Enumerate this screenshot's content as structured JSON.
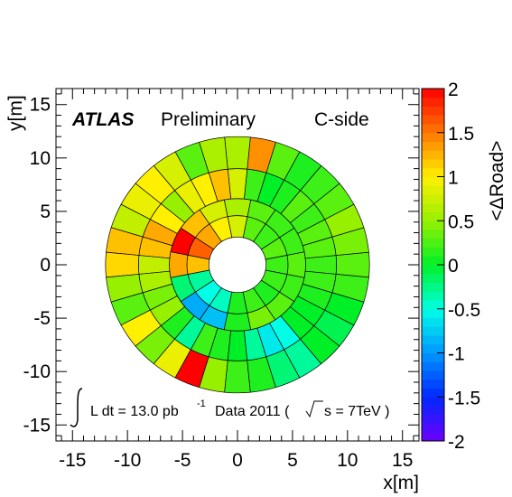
{
  "chart_data": {
    "type": "heatmap",
    "title": "",
    "xlabel": "x[m]",
    "ylabel": "y[m]",
    "zlabel": "<ΔRoad>",
    "xlim": [
      -16.5,
      16.5
    ],
    "ylim": [
      -16.5,
      16.5
    ],
    "zlim": [
      -2,
      2
    ],
    "x_ticks": [
      "-15",
      "-10",
      "-5",
      "0",
      "5",
      "10",
      "15"
    ],
    "y_ticks": [
      "15",
      "10",
      "5",
      "0",
      "-5",
      "-10",
      "-15"
    ],
    "z_ticks": [
      "2",
      "1.5",
      "1",
      "0.5",
      "0",
      "-0.5",
      "-1",
      "-1.5",
      "-2"
    ],
    "annotations": {
      "experiment": "ATLAS",
      "status": "Preliminary",
      "side": "C-side",
      "lumi_prefix": "L dt = 13.0 pb",
      "lumi_exp": "-1",
      "lumi_data": "Data 2011 (",
      "lumi_energy": "s = 7TeV )"
    },
    "grid": false,
    "legend": "colorbar-right",
    "rings": [
      {
        "r_inner": 2.6,
        "r_outer": 4.6,
        "n_sectors": 16,
        "values": [
          0.2,
          0.3,
          0.2,
          0.3,
          0.8,
          1.0,
          1.3,
          1.6,
          1.2,
          -0.3,
          -0.5,
          -0.4,
          0.1,
          0.2,
          0.1,
          0.2
        ]
      },
      {
        "r_inner": 4.6,
        "r_outer": 6.2,
        "n_sectors": 16,
        "values": [
          0.3,
          0.2,
          0.2,
          0.3,
          0.6,
          0.8,
          1.2,
          2.0,
          1.3,
          -0.2,
          -0.9,
          -0.8,
          0.1,
          0.4,
          0.3,
          0.2
        ]
      },
      {
        "r_inner": 6.2,
        "r_outer": 9.0,
        "n_sectors": 32,
        "values": [
          0.2,
          0.3,
          0.3,
          0.2,
          0.3,
          0.1,
          0.0,
          0.2,
          0.8,
          1.2,
          1.0,
          0.9,
          0.5,
          1.0,
          1.3,
          1.2,
          0.7,
          0.6,
          0.4,
          0.5,
          0.1,
          -0.3,
          0.2,
          0.1,
          0.0,
          -0.3,
          -0.6,
          -0.5,
          0.0,
          0.0,
          0.1,
          0.2
        ]
      },
      {
        "r_inner": 9.0,
        "r_outer": 12.0,
        "n_sectors": 32,
        "values": [
          0.3,
          0.4,
          0.5,
          0.3,
          0.2,
          0.1,
          0.3,
          1.4,
          0.6,
          0.6,
          0.3,
          0.8,
          1.0,
          0.9,
          0.7,
          1.2,
          1.1,
          0.5,
          0.3,
          1.0,
          0.4,
          0.9,
          2.0,
          0.5,
          0.2,
          0.1,
          -0.2,
          -0.3,
          0.0,
          -0.1,
          0.0,
          0.2
        ]
      }
    ]
  }
}
